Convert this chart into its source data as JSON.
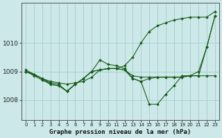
{
  "title": "Graphe pression niveau de la mer (hPa)",
  "bg_color": "#cce8e8",
  "grid_color": "#aad0d0",
  "line_color": "#1a5c1a",
  "x_ticks": [
    0,
    1,
    2,
    3,
    4,
    5,
    6,
    7,
    8,
    9,
    10,
    11,
    12,
    13,
    14,
    15,
    16,
    17,
    18,
    19,
    20,
    21,
    22,
    23
  ],
  "ylim": [
    1007.3,
    1011.4
  ],
  "yticks": [
    1008,
    1009,
    1010
  ],
  "series1_x": [
    0,
    1,
    2,
    3,
    4,
    5,
    6,
    7,
    8,
    9,
    10,
    11,
    12,
    13,
    14,
    15,
    16,
    17,
    18,
    19,
    20,
    21,
    22,
    23
  ],
  "series1_y": [
    1009.0,
    1008.9,
    1008.75,
    1008.65,
    1008.6,
    1008.55,
    1008.6,
    1008.65,
    1008.8,
    1009.05,
    1009.1,
    1009.1,
    1009.05,
    1008.85,
    1008.8,
    1008.8,
    1008.8,
    1008.8,
    1008.8,
    1008.8,
    1008.85,
    1008.85,
    1008.85,
    1008.85
  ],
  "series2_x": [
    0,
    1,
    2,
    3,
    4,
    5,
    6,
    7,
    8,
    9,
    10,
    11,
    12,
    13,
    14,
    15,
    16,
    17,
    18,
    19,
    20,
    21,
    22,
    23
  ],
  "series2_y": [
    1009.0,
    1008.85,
    1008.7,
    1008.55,
    1008.5,
    1008.3,
    1008.55,
    1008.75,
    1009.0,
    1009.4,
    1009.25,
    1009.2,
    1009.1,
    1008.75,
    1008.65,
    1007.85,
    1007.85,
    1008.2,
    1008.5,
    1008.85,
    1008.85,
    1009.0,
    1009.85,
    1010.95
  ],
  "series3_x": [
    0,
    2,
    3,
    4,
    5,
    6,
    7,
    8,
    9,
    10,
    11,
    12,
    13,
    14,
    15,
    16,
    17,
    18,
    19,
    20,
    21,
    22,
    23
  ],
  "series3_y": [
    1009.0,
    1008.75,
    1008.55,
    1008.5,
    1008.32,
    1008.55,
    1008.75,
    1009.0,
    1009.05,
    1009.1,
    1009.1,
    1009.05,
    1008.75,
    1008.65,
    1008.75,
    1008.8,
    1008.8,
    1008.8,
    1008.8,
    1008.85,
    1008.85,
    1009.85,
    1010.95
  ],
  "series4_x": [
    0,
    1,
    2,
    3,
    4,
    5,
    6,
    7,
    8,
    9,
    10,
    11,
    12,
    13,
    14,
    15,
    16,
    17,
    18,
    19,
    20,
    21,
    22,
    23
  ],
  "series4_y": [
    1009.05,
    1008.9,
    1008.75,
    1008.6,
    1008.55,
    1008.3,
    1008.55,
    1008.75,
    1009.0,
    1009.05,
    1009.1,
    1009.1,
    1009.2,
    1009.5,
    1010.0,
    1010.4,
    1010.6,
    1010.7,
    1010.8,
    1010.85,
    1010.9,
    1010.9,
    1010.9,
    1011.1
  ]
}
